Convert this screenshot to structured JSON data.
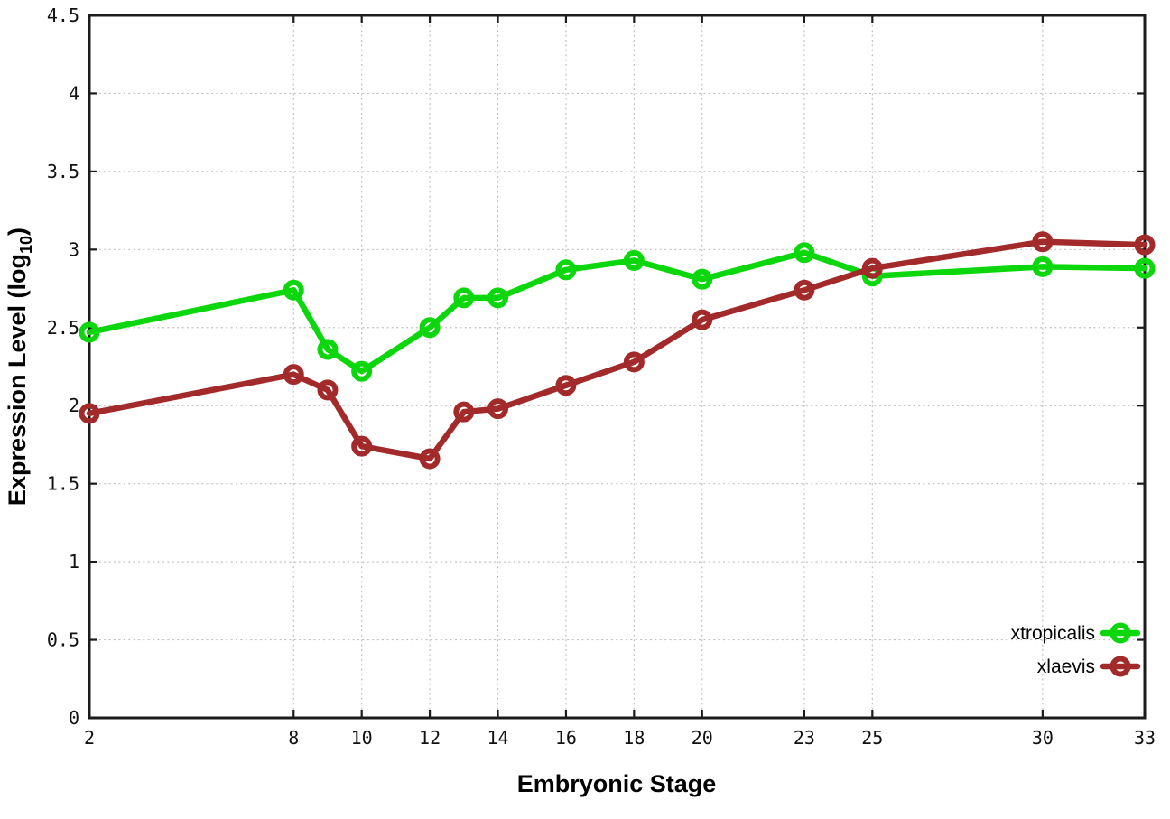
{
  "chart_data": {
    "type": "line",
    "title": "",
    "xlabel": "Embryonic Stage",
    "ylabel_prefix": "Expression Level (log",
    "ylabel_sub": "10",
    "ylabel_suffix": ")",
    "xlim": [
      2,
      33
    ],
    "ylim": [
      0,
      4.5
    ],
    "x_ticks": [
      2,
      8,
      10,
      12,
      14,
      16,
      18,
      20,
      23,
      25,
      30,
      33
    ],
    "x_tick_labels": [
      "2",
      "8",
      "10",
      "12",
      "14",
      "16",
      "18",
      "20",
      "23",
      "25",
      "30",
      "33"
    ],
    "y_ticks": [
      0,
      0.5,
      1,
      1.5,
      2,
      2.5,
      3,
      3.5,
      4,
      4.5
    ],
    "y_tick_labels": [
      "0",
      "0.5",
      "1",
      "1.5",
      "2",
      "2.5",
      "3",
      "3.5",
      "4",
      "4.5"
    ],
    "grid": true,
    "legend_position": "bottom-right",
    "x": [
      2,
      8,
      9,
      10,
      12,
      13,
      14,
      16,
      18,
      20,
      23,
      25,
      30,
      33
    ],
    "series": [
      {
        "name": "xtropicalis",
        "color": "#0cd60c",
        "values": [
          2.47,
          2.74,
          2.36,
          2.22,
          2.5,
          2.69,
          2.69,
          2.87,
          2.93,
          2.81,
          2.98,
          2.83,
          2.89,
          2.88
        ]
      },
      {
        "name": "xlaevis",
        "color": "#a32a2a",
        "values": [
          1.95,
          2.2,
          2.1,
          1.74,
          1.66,
          1.96,
          1.98,
          2.13,
          2.28,
          2.55,
          2.74,
          2.88,
          3.05,
          3.03
        ]
      }
    ],
    "axis_color": "#1b1b1b",
    "grid_color": "#c0c0c0",
    "marker": "open-circle"
  }
}
